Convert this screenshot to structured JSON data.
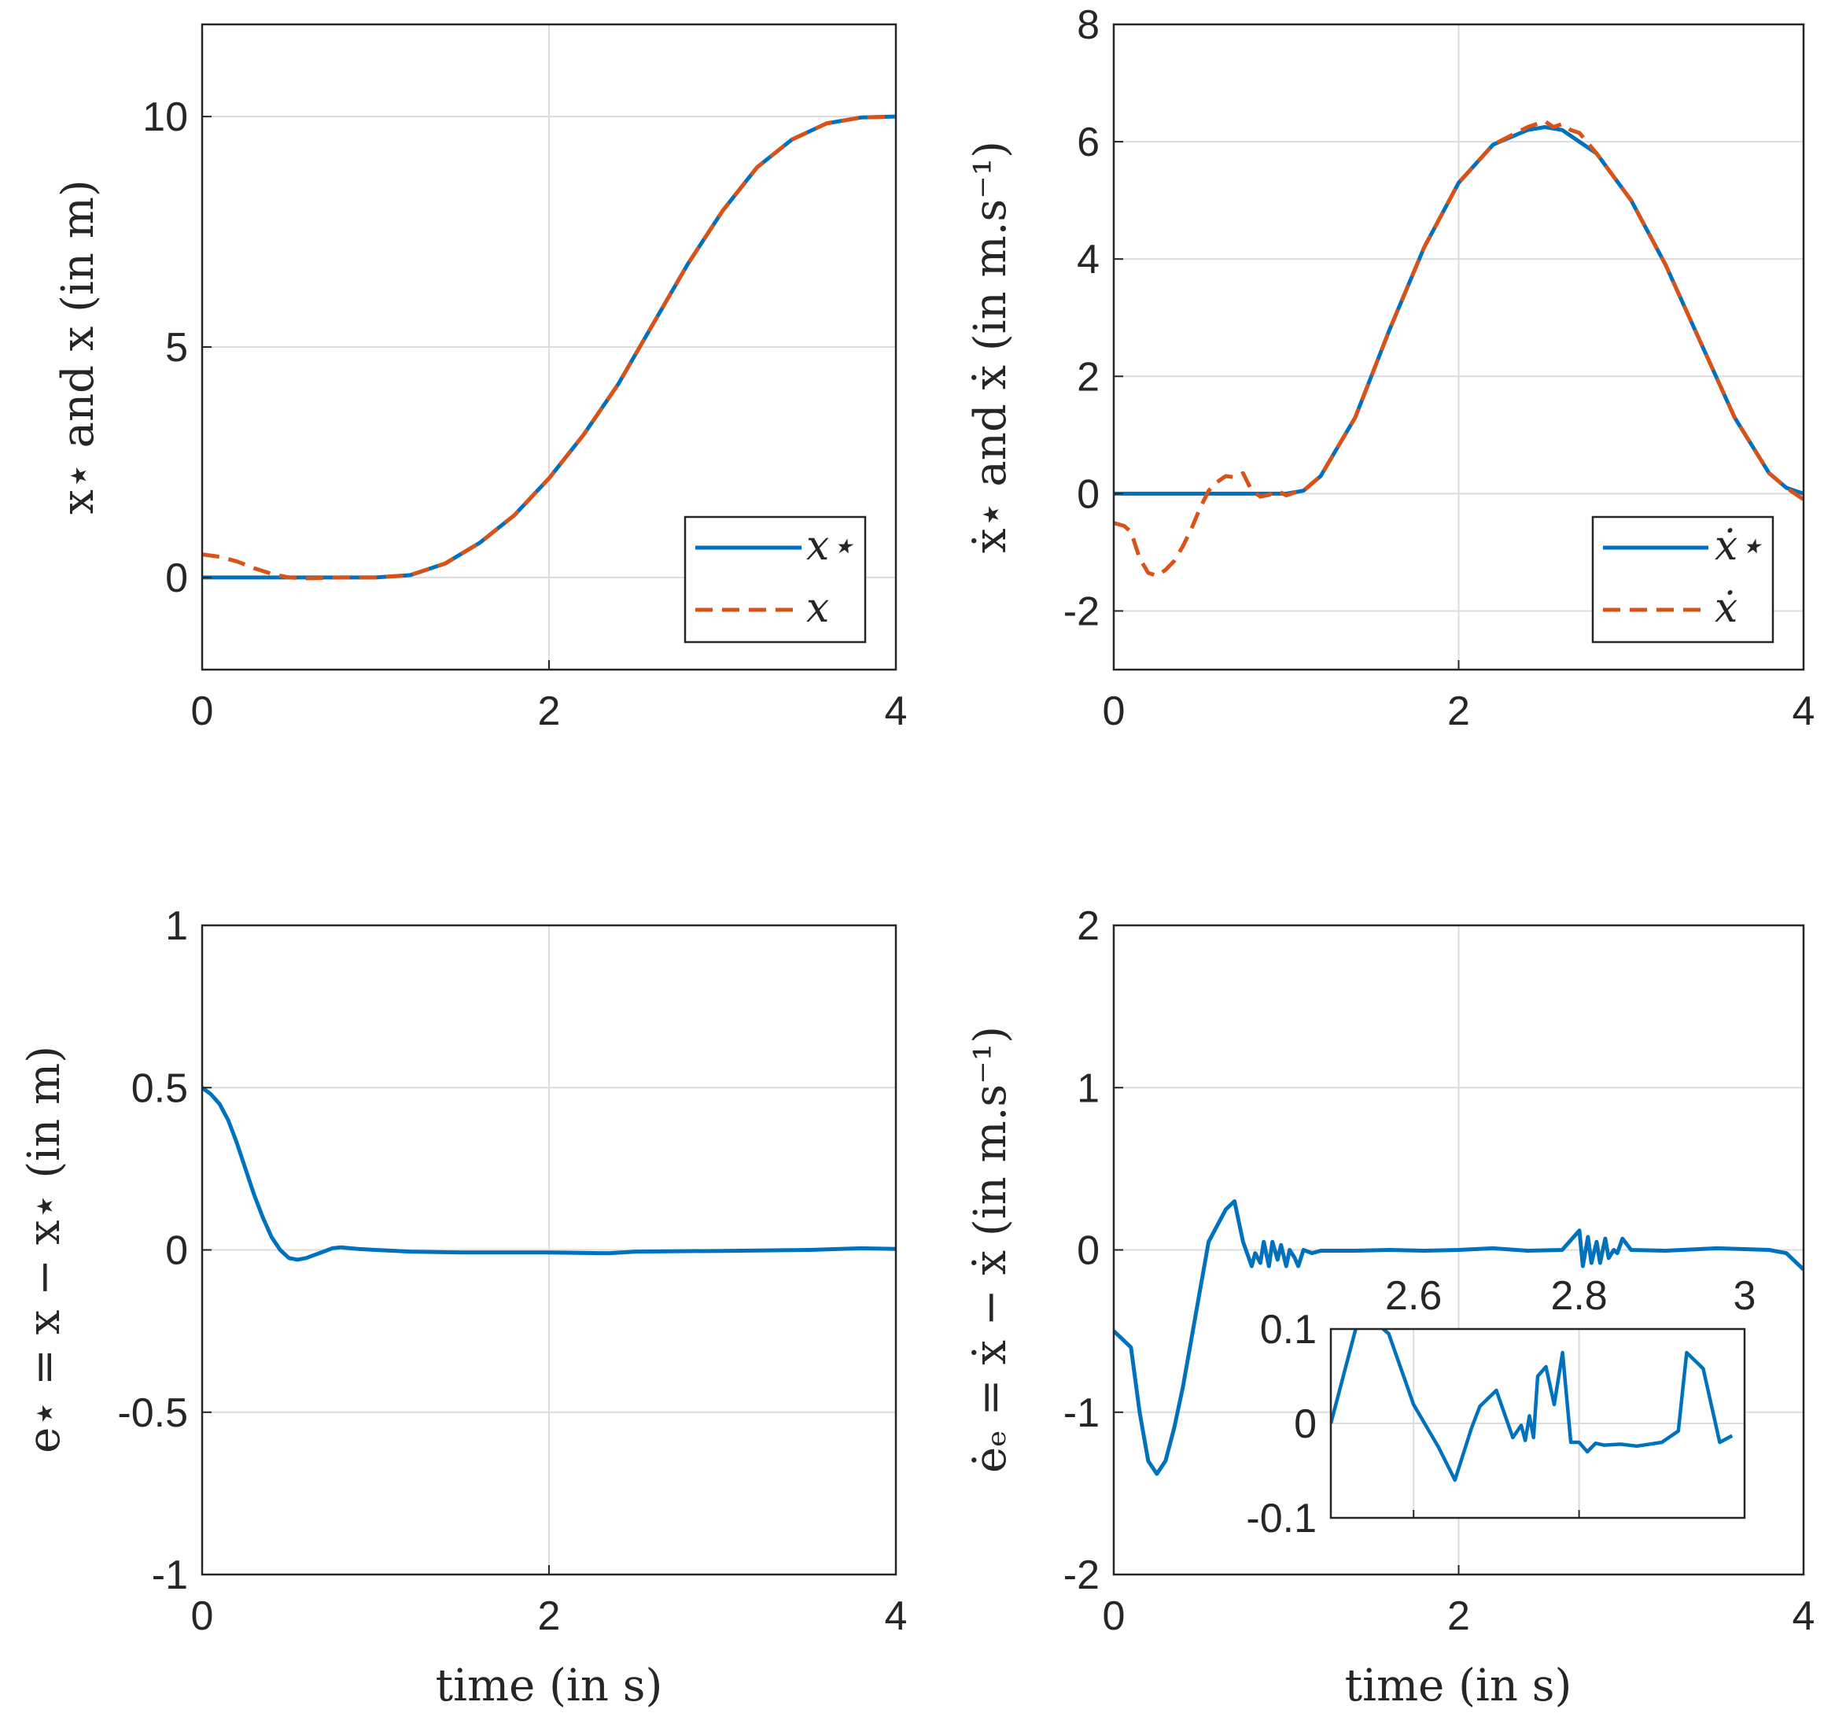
{
  "figure": {
    "background": "#ffffff"
  },
  "colors": {
    "reference": "#0072BD",
    "actual": "#D95319",
    "grid": "#dcdcdc",
    "axis": "#262626"
  },
  "chart_data": [
    {
      "id": "position",
      "type": "line",
      "title": "",
      "xlabel": "",
      "ylabel": "x⋆ and x (in m)",
      "xlim": [
        0,
        4
      ],
      "ylim": [
        -2,
        12
      ],
      "xticks": [
        0,
        2,
        4
      ],
      "xtick_labels": [
        "0",
        "2",
        "4"
      ],
      "yticks": [
        0,
        5,
        10
      ],
      "ytick_labels": [
        "0",
        "5",
        "10"
      ],
      "grid": true,
      "legend": {
        "position": "bottom-right",
        "entries": [
          "x⋆",
          "x"
        ]
      },
      "series": [
        {
          "name": "x⋆",
          "style": "solid",
          "color": "#0072BD",
          "x": [
            0,
            0.4,
            0.8,
            1.0,
            1.2,
            1.4,
            1.6,
            1.8,
            2.0,
            2.2,
            2.4,
            2.6,
            2.8,
            3.0,
            3.2,
            3.4,
            3.6,
            3.8,
            4.0
          ],
          "y": [
            0,
            0,
            0,
            0,
            0.05,
            0.3,
            0.75,
            1.35,
            2.15,
            3.1,
            4.2,
            5.5,
            6.8,
            7.95,
            8.9,
            9.5,
            9.85,
            9.98,
            10
          ]
        },
        {
          "name": "x",
          "style": "dashed",
          "color": "#D95319",
          "x": [
            0,
            0.1,
            0.2,
            0.3,
            0.4,
            0.5,
            0.6,
            0.8,
            1.0,
            1.2,
            1.4,
            1.6,
            1.8,
            2.0,
            2.2,
            2.4,
            2.6,
            2.8,
            3.0,
            3.2,
            3.4,
            3.6,
            3.8,
            4.0
          ],
          "y": [
            0.5,
            0.45,
            0.35,
            0.2,
            0.08,
            0.0,
            -0.02,
            0,
            0,
            0.05,
            0.3,
            0.75,
            1.35,
            2.15,
            3.1,
            4.2,
            5.5,
            6.8,
            7.95,
            8.9,
            9.5,
            9.85,
            9.98,
            10
          ]
        }
      ]
    },
    {
      "id": "velocity",
      "type": "line",
      "title": "",
      "xlabel": "",
      "ylabel": "ẋ⋆ and ẋ (in m.s⁻¹)",
      "xlim": [
        0,
        4
      ],
      "ylim": [
        -3,
        8
      ],
      "xticks": [
        0,
        2,
        4
      ],
      "xtick_labels": [
        "0",
        "2",
        "4"
      ],
      "yticks": [
        -2,
        0,
        2,
        4,
        6,
        8
      ],
      "ytick_labels": [
        "-2",
        "0",
        "2",
        "4",
        "6",
        "8"
      ],
      "grid": true,
      "legend": {
        "position": "bottom-right",
        "entries": [
          "ẋ⋆",
          "ẋ"
        ]
      },
      "series": [
        {
          "name": "ẋ⋆",
          "style": "solid",
          "color": "#0072BD",
          "x": [
            0,
            0.5,
            1.0,
            1.1,
            1.2,
            1.4,
            1.6,
            1.8,
            2.0,
            2.2,
            2.4,
            2.5,
            2.6,
            2.8,
            3.0,
            3.2,
            3.4,
            3.6,
            3.8,
            3.9,
            4.0
          ],
          "y": [
            0,
            0,
            0,
            0.05,
            0.3,
            1.3,
            2.8,
            4.2,
            5.3,
            5.95,
            6.2,
            6.25,
            6.2,
            5.8,
            5.0,
            3.9,
            2.6,
            1.3,
            0.35,
            0.1,
            0
          ]
        },
        {
          "name": "ẋ",
          "style": "dashed",
          "color": "#D95319",
          "x": [
            0,
            0.06,
            0.1,
            0.15,
            0.2,
            0.25,
            0.3,
            0.35,
            0.4,
            0.45,
            0.5,
            0.55,
            0.6,
            0.65,
            0.7,
            0.75,
            0.8,
            0.85,
            0.9,
            0.95,
            1.0,
            1.05,
            1.1,
            1.2,
            1.4,
            1.6,
            1.8,
            2.0,
            2.2,
            2.4,
            2.45,
            2.5,
            2.55,
            2.6,
            2.65,
            2.7,
            2.8,
            3.0,
            3.2,
            3.4,
            3.6,
            3.8,
            3.9,
            4.0
          ],
          "y": [
            -0.5,
            -0.55,
            -0.65,
            -1.1,
            -1.35,
            -1.4,
            -1.3,
            -1.15,
            -0.9,
            -0.6,
            -0.25,
            0.05,
            0.2,
            0.3,
            0.28,
            0.35,
            0.05,
            -0.05,
            -0.02,
            0.05,
            -0.03,
            0.02,
            0.05,
            0.3,
            1.3,
            2.8,
            4.2,
            5.3,
            5.95,
            6.25,
            6.3,
            6.35,
            6.25,
            6.3,
            6.2,
            6.15,
            5.8,
            5.0,
            3.9,
            2.6,
            1.3,
            0.35,
            0.1,
            -0.1
          ]
        }
      ]
    },
    {
      "id": "position-error",
      "type": "line",
      "title": "",
      "xlabel": "time (in s)",
      "ylabel": "e⋆ = x − x⋆ (in m)",
      "xlim": [
        0,
        4
      ],
      "ylim": [
        -1,
        1
      ],
      "xticks": [
        0,
        2,
        4
      ],
      "xtick_labels": [
        "0",
        "2",
        "4"
      ],
      "yticks": [
        -1,
        -0.5,
        0,
        0.5,
        1
      ],
      "ytick_labels": [
        "-1",
        "-0.5",
        "0",
        "0.5",
        "1"
      ],
      "grid": true,
      "series": [
        {
          "name": "e⋆",
          "style": "solid",
          "color": "#0072BD",
          "x": [
            0,
            0.05,
            0.1,
            0.15,
            0.2,
            0.25,
            0.3,
            0.35,
            0.4,
            0.45,
            0.5,
            0.55,
            0.6,
            0.65,
            0.7,
            0.75,
            0.8,
            0.9,
            1.0,
            1.2,
            1.5,
            2.0,
            2.3,
            2.35,
            2.5,
            3.0,
            3.5,
            3.8,
            4.0
          ],
          "y": [
            0.5,
            0.48,
            0.45,
            0.4,
            0.33,
            0.25,
            0.17,
            0.1,
            0.04,
            0.0,
            -0.025,
            -0.03,
            -0.025,
            -0.015,
            -0.005,
            0.005,
            0.008,
            0.003,
            0.0,
            -0.005,
            -0.008,
            -0.008,
            -0.01,
            -0.01,
            -0.005,
            -0.003,
            0.0,
            0.005,
            0.003
          ]
        }
      ]
    },
    {
      "id": "velocity-error",
      "type": "line",
      "title": "",
      "xlabel": "time (in s)",
      "ylabel": "ėₑ = ẋ − ẋ (in m.s⁻¹)",
      "xlim": [
        0,
        4
      ],
      "ylim": [
        -2,
        2
      ],
      "xticks": [
        0,
        2,
        4
      ],
      "xtick_labels": [
        "0",
        "2",
        "4"
      ],
      "yticks": [
        -2,
        -1,
        0,
        1,
        2
      ],
      "ytick_labels": [
        "-2",
        "-1",
        "0",
        "1",
        "2"
      ],
      "grid": true,
      "series": [
        {
          "name": "ėₑ",
          "style": "solid",
          "color": "#0072BD",
          "x": [
            0,
            0.05,
            0.1,
            0.15,
            0.2,
            0.25,
            0.3,
            0.35,
            0.4,
            0.45,
            0.5,
            0.55,
            0.6,
            0.65,
            0.7,
            0.75,
            0.8,
            0.82,
            0.85,
            0.87,
            0.9,
            0.92,
            0.95,
            0.97,
            1.0,
            1.02,
            1.05,
            1.07,
            1.1,
            1.15,
            1.2,
            1.4,
            1.6,
            1.8,
            2.0,
            2.2,
            2.4,
            2.6,
            2.7,
            2.72,
            2.75,
            2.77,
            2.8,
            2.82,
            2.85,
            2.87,
            2.9,
            2.92,
            2.95,
            3.0,
            3.2,
            3.5,
            3.8,
            3.9,
            4.0
          ],
          "y": [
            -0.5,
            -0.55,
            -0.6,
            -1.0,
            -1.3,
            -1.38,
            -1.3,
            -1.1,
            -0.85,
            -0.55,
            -0.25,
            0.05,
            0.15,
            0.25,
            0.3,
            0.05,
            -0.1,
            -0.02,
            -0.08,
            0.05,
            -0.1,
            0.05,
            -0.06,
            0.03,
            -0.1,
            0.0,
            -0.05,
            -0.1,
            0.0,
            -0.02,
            -0.005,
            -0.005,
            0.0,
            -0.005,
            0.0,
            0.01,
            -0.005,
            0.0,
            0.12,
            -0.1,
            0.08,
            -0.08,
            0.05,
            -0.08,
            0.07,
            -0.05,
            0.0,
            -0.02,
            0.07,
            0.0,
            -0.005,
            0.01,
            0.0,
            -0.02,
            -0.12
          ]
        }
      ],
      "inset": {
        "xlim": [
          2.5,
          3.0
        ],
        "ylim": [
          -0.1,
          0.1
        ],
        "xticks": [
          2.6,
          2.8,
          3
        ],
        "xtick_labels": [
          "2.6",
          "2.8",
          "3"
        ],
        "yticks": [
          -0.1,
          0,
          0.1
        ],
        "ytick_labels": [
          "-0.1",
          "0",
          "0.1"
        ],
        "x": [
          2.5,
          2.53,
          2.55,
          2.57,
          2.6,
          2.63,
          2.65,
          2.67,
          2.68,
          2.7,
          2.72,
          2.73,
          2.735,
          2.74,
          2.745,
          2.75,
          2.76,
          2.77,
          2.78,
          2.79,
          2.8,
          2.81,
          2.82,
          2.83,
          2.85,
          2.87,
          2.9,
          2.92,
          2.93,
          2.95,
          2.97,
          2.985
        ],
        "y": [
          0.0,
          0.1,
          0.11,
          0.095,
          0.02,
          -0.025,
          -0.06,
          -0.005,
          0.018,
          0.035,
          -0.015,
          -0.002,
          -0.018,
          0.008,
          -0.015,
          0.05,
          0.06,
          0.02,
          0.075,
          -0.02,
          -0.02,
          -0.03,
          -0.021,
          -0.023,
          -0.022,
          -0.024,
          -0.02,
          -0.008,
          0.075,
          0.058,
          -0.02,
          -0.013
        ]
      }
    }
  ]
}
